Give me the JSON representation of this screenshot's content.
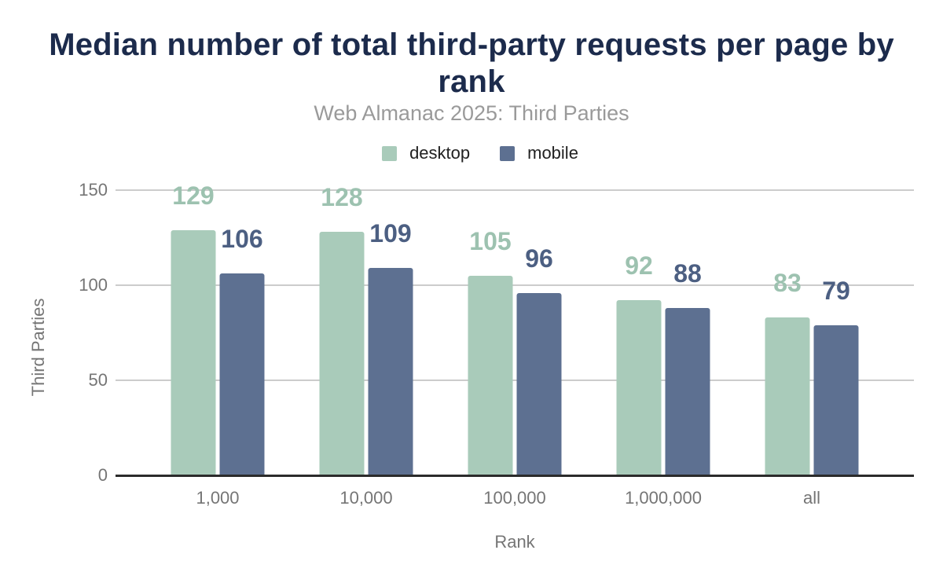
{
  "chart_data": {
    "type": "bar",
    "title": "Median number of total third-party requests per page by rank",
    "subtitle": "Web Almanac 2025: Third Parties",
    "xlabel": "Rank",
    "ylabel": "Third Parties",
    "categories": [
      "1,000",
      "10,000",
      "100,000",
      "1,000,000",
      "all"
    ],
    "series": [
      {
        "name": "desktop",
        "color": "#a9cbba",
        "label_color": "#9dc2b0",
        "values": [
          129,
          128,
          105,
          92,
          83
        ]
      },
      {
        "name": "mobile",
        "color": "#5d7091",
        "label_color": "#4c5f82",
        "values": [
          106,
          109,
          96,
          88,
          79
        ]
      }
    ],
    "ylim": [
      0,
      150
    ],
    "yticks": [
      0,
      50,
      100,
      150
    ],
    "grid": true,
    "legend_position": "top"
  },
  "colors": {
    "title_text": "#1c2b4c",
    "subtitle_text": "#9a9a9a",
    "axis_text": "#757575",
    "gridline": "#cccccc",
    "baseline": "#2b2b2b",
    "background": "#ffffff"
  }
}
